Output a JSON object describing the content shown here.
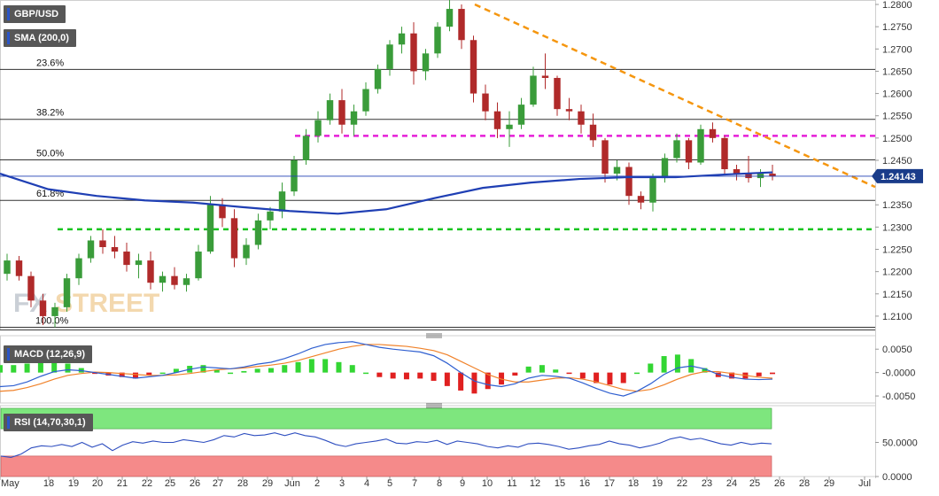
{
  "legends": {
    "symbol": "GBP/USD",
    "sma": "SMA (200,0)",
    "macd": "MACD (12,26,9)",
    "rsi": "RSI (14,70,30,1)"
  },
  "watermark": "FXSTREET",
  "colors": {
    "bull": "#3a9c3a",
    "bear": "#b02a2a",
    "sma": "#1f3fb4",
    "trendline": "#f5960f",
    "resistance": "#e61ed8",
    "support": "#17c41f",
    "macd": "#2f5fd0",
    "signal": "#f0822a",
    "rsi": "#2f4fc0",
    "rsi_overbought": "#7ee67e",
    "rsi_oversold": "#f58a8a"
  },
  "chart_data": [
    {
      "type": "candlestick",
      "name": "price",
      "symbol": "GBP/USD",
      "price_axis": {
        "ticks": [
          "1.2800",
          "1.2750",
          "1.2700",
          "1.2650",
          "1.2600",
          "1.2550",
          "1.2500",
          "1.2450",
          "1.2350",
          "1.2300",
          "1.2250",
          "1.2200",
          "1.2150",
          "1.2100"
        ],
        "last_price": "1.24143",
        "ylim": [
          1.207,
          1.281
        ]
      },
      "x_axis": {
        "ticks": [
          "May",
          "18",
          "19",
          "20",
          "21",
          "22",
          "25",
          "26",
          "27",
          "28",
          "29",
          "Jun",
          "2",
          "3",
          "4",
          "5",
          "7",
          "8",
          "9",
          "10",
          "11",
          "12",
          "15",
          "16",
          "17",
          "18",
          "19",
          "22",
          "23",
          "24",
          "25",
          "26",
          "28",
          "29",
          "Jul"
        ]
      },
      "fibonacci": [
        {
          "label": "23.6%",
          "value": 1.2654
        },
        {
          "label": "38.2%",
          "value": 1.2542
        },
        {
          "label": "50.0%",
          "value": 1.2451
        },
        {
          "label": "61.8%",
          "value": 1.236
        },
        {
          "label": "100.0%",
          "value": 1.2075
        }
      ],
      "horizontal_levels": {
        "resistance": 1.2505,
        "support": 1.2295
      },
      "trendline": {
        "from": [
          "9",
          1.28
        ],
        "to": [
          "29",
          1.239
        ]
      },
      "sma_200": [
        1.242,
        1.2385,
        1.237,
        1.236,
        1.2355,
        1.2345,
        1.2336,
        1.233,
        1.234,
        1.2365,
        1.2388,
        1.24,
        1.2408,
        1.2412,
        1.2412,
        1.2418,
        1.2423
      ],
      "ohlc": [
        [
          1.2195,
          1.224,
          1.218,
          1.2225
        ],
        [
          1.2225,
          1.2235,
          1.218,
          1.219
        ],
        [
          1.219,
          1.22,
          1.212,
          1.2135
        ],
        [
          1.2135,
          1.215,
          1.208,
          1.21
        ],
        [
          1.21,
          1.213,
          1.2075,
          1.212
        ],
        [
          1.212,
          1.2195,
          1.211,
          1.2185
        ],
        [
          1.2185,
          1.224,
          1.217,
          1.223
        ],
        [
          1.223,
          1.228,
          1.222,
          1.227
        ],
        [
          1.227,
          1.2295,
          1.224,
          1.2255
        ],
        [
          1.2255,
          1.228,
          1.223,
          1.2245
        ],
        [
          1.2245,
          1.2265,
          1.22,
          1.2215
        ],
        [
          1.2215,
          1.224,
          1.2185,
          1.2225
        ],
        [
          1.2225,
          1.2245,
          1.216,
          1.2175
        ],
        [
          1.2175,
          1.22,
          1.2155,
          1.219
        ],
        [
          1.219,
          1.221,
          1.216,
          1.217
        ],
        [
          1.217,
          1.2195,
          1.2155,
          1.2185
        ],
        [
          1.2185,
          1.226,
          1.218,
          1.2245
        ],
        [
          1.2245,
          1.237,
          1.224,
          1.235
        ],
        [
          1.235,
          1.2365,
          1.23,
          1.232
        ],
        [
          1.232,
          1.234,
          1.221,
          1.223
        ],
        [
          1.223,
          1.2275,
          1.2215,
          1.226
        ],
        [
          1.226,
          1.233,
          1.225,
          1.2315
        ],
        [
          1.2315,
          1.2345,
          1.2295,
          1.2335
        ],
        [
          1.2335,
          1.24,
          1.232,
          1.238
        ],
        [
          1.238,
          1.246,
          1.237,
          1.245
        ],
        [
          1.245,
          1.252,
          1.244,
          1.2505
        ],
        [
          1.2505,
          1.256,
          1.249,
          1.254
        ],
        [
          1.254,
          1.26,
          1.253,
          1.2585
        ],
        [
          1.2585,
          1.261,
          1.251,
          1.253
        ],
        [
          1.253,
          1.2575,
          1.2505,
          1.256
        ],
        [
          1.256,
          1.2625,
          1.255,
          1.261
        ],
        [
          1.261,
          1.2665,
          1.26,
          1.2655
        ],
        [
          1.2655,
          1.272,
          1.264,
          1.271
        ],
        [
          1.271,
          1.275,
          1.269,
          1.2735
        ],
        [
          1.2735,
          1.276,
          1.262,
          1.265
        ],
        [
          1.265,
          1.27,
          1.263,
          1.269
        ],
        [
          1.269,
          1.276,
          1.268,
          1.275
        ],
        [
          1.275,
          1.2815,
          1.274,
          1.279
        ],
        [
          1.279,
          1.28,
          1.27,
          1.272
        ],
        [
          1.272,
          1.273,
          1.258,
          1.26
        ],
        [
          1.26,
          1.262,
          1.254,
          1.256
        ],
        [
          1.256,
          1.258,
          1.25,
          1.252
        ],
        [
          1.252,
          1.256,
          1.248,
          1.253
        ],
        [
          1.253,
          1.259,
          1.252,
          1.2575
        ],
        [
          1.2575,
          1.266,
          1.257,
          1.264
        ],
        [
          1.264,
          1.269,
          1.261,
          1.2635
        ],
        [
          1.2635,
          1.264,
          1.255,
          1.2565
        ],
        [
          1.2565,
          1.259,
          1.254,
          1.256
        ],
        [
          1.256,
          1.2575,
          1.251,
          1.253
        ],
        [
          1.253,
          1.2555,
          1.248,
          1.2495
        ],
        [
          1.2495,
          1.25,
          1.24,
          1.242
        ],
        [
          1.242,
          1.245,
          1.2405,
          1.2435
        ],
        [
          1.2435,
          1.2445,
          1.235,
          1.237
        ],
        [
          1.237,
          1.238,
          1.234,
          1.2355
        ],
        [
          1.2355,
          1.242,
          1.2335,
          1.241
        ],
        [
          1.241,
          1.2465,
          1.24,
          1.2455
        ],
        [
          1.2455,
          1.251,
          1.2445,
          1.2495
        ],
        [
          1.2495,
          1.25,
          1.243,
          1.2445
        ],
        [
          1.2445,
          1.253,
          1.244,
          1.252
        ],
        [
          1.252,
          1.2535,
          1.249,
          1.25
        ],
        [
          1.25,
          1.2505,
          1.242,
          1.243
        ],
        [
          1.243,
          1.244,
          1.2405,
          1.242
        ],
        [
          1.242,
          1.246,
          1.24,
          1.241
        ],
        [
          1.241,
          1.243,
          1.239,
          1.242
        ],
        [
          1.242,
          1.244,
          1.2405,
          1.2414
        ]
      ]
    },
    {
      "type": "line",
      "name": "MACD (12,26,9)",
      "y_ticks": [
        "0.0050",
        "-0.0000",
        "-0.0050"
      ],
      "ylim": [
        -0.0065,
        0.0075
      ],
      "series": [
        {
          "values": [
            -0.003,
            -0.0028,
            -0.002,
            -0.0008,
            0.0002,
            0.0006,
            0.0004,
            0.0,
            -0.0004,
            -0.0008,
            -0.0012,
            -0.0009,
            -0.0006,
            0.0,
            0.0007,
            0.0012,
            0.001,
            0.0008,
            0.0012,
            0.0018,
            0.0022,
            0.003,
            0.004,
            0.0052,
            0.006,
            0.0064,
            0.0066,
            0.006,
            0.0054,
            0.005,
            0.0047,
            0.0044,
            0.0036,
            0.002,
            0.0,
            -0.0018,
            -0.0026,
            -0.003,
            -0.0024,
            -0.0012,
            -0.0006,
            -0.0008,
            -0.0012,
            -0.0022,
            -0.0034,
            -0.0044,
            -0.005,
            -0.004,
            -0.0024,
            -0.0004,
            0.001,
            0.0014,
            0.0008,
            -0.0004,
            -0.001,
            -0.0014,
            -0.0015,
            -0.0014
          ]
        },
        {
          "values": [
            -0.004,
            -0.0038,
            -0.0032,
            -0.0024,
            -0.0014,
            -0.0006,
            -0.0002,
            0.0001,
            0.0,
            -0.0002,
            -0.0004,
            -0.0006,
            -0.0006,
            -0.0005,
            -0.0002,
            0.0002,
            0.0006,
            0.0008,
            0.001,
            0.0013,
            0.0016,
            0.002,
            0.0026,
            0.0034,
            0.0042,
            0.005,
            0.0056,
            0.006,
            0.006,
            0.0058,
            0.0056,
            0.0052,
            0.0047,
            0.0038,
            0.0024,
            0.001,
            -0.0004,
            -0.0014,
            -0.002,
            -0.002,
            -0.0016,
            -0.0012,
            -0.0011,
            -0.0014,
            -0.002,
            -0.0028,
            -0.0036,
            -0.004,
            -0.0036,
            -0.0026,
            -0.0014,
            -0.0004,
            0.0002,
            0.0002,
            -0.0002,
            -0.0006,
            -0.001,
            -0.0012
          ]
        }
      ]
    },
    {
      "type": "line",
      "name": "RSI (14,70,30,1)",
      "y_ticks": [
        "50.0000",
        "0.0000"
      ],
      "ylim": [
        0,
        100
      ],
      "bands": {
        "overbought": 70,
        "oversold": 30
      },
      "series": [
        {
          "values": [
            30,
            28,
            33,
            42,
            45,
            44,
            47,
            44,
            50,
            43,
            48,
            38,
            46,
            51,
            49,
            52,
            50,
            50,
            54,
            52,
            50,
            54,
            60,
            58,
            63,
            60,
            61,
            64,
            60,
            64,
            60,
            58,
            53,
            47,
            44,
            48,
            50,
            52,
            55,
            49,
            48,
            51,
            50,
            53,
            47,
            52,
            50,
            48,
            44,
            42,
            45,
            43,
            48,
            49,
            47,
            44,
            40,
            42,
            45,
            47,
            52,
            48,
            46,
            42,
            45,
            49,
            55,
            58,
            54,
            56,
            52,
            48,
            46,
            50,
            47,
            49,
            48
          ]
        }
      ]
    }
  ]
}
